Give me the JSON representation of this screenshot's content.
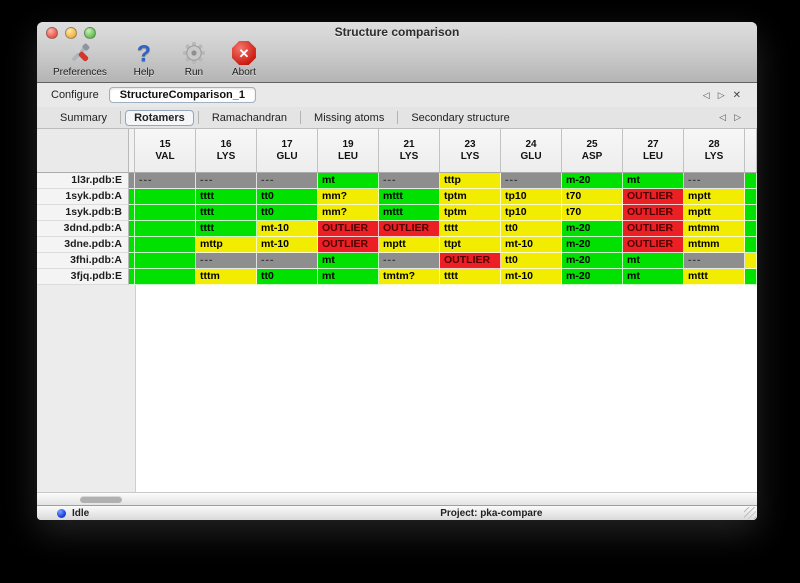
{
  "window": {
    "title": "Structure comparison"
  },
  "toolbar": {
    "items": [
      {
        "id": "preferences",
        "label": "Preferences",
        "icon": "tools-icon"
      },
      {
        "id": "help",
        "label": "Help",
        "icon": "question-mark-icon"
      },
      {
        "id": "run",
        "label": "Run",
        "icon": "gear-icon"
      },
      {
        "id": "abort",
        "label": "Abort",
        "icon": "stop-x-icon"
      }
    ]
  },
  "configure": {
    "label": "Configure",
    "value": "StructureComparison_1"
  },
  "pane_nav": {
    "prev": "◁",
    "next": "▷",
    "close": "✕"
  },
  "tab_nav": {
    "prev": "◁",
    "next": "▷"
  },
  "tabs": [
    {
      "label": "Summary",
      "selected": false
    },
    {
      "label": "Rotamers",
      "selected": true
    },
    {
      "label": "Ramachandran",
      "selected": false
    },
    {
      "label": "Missing atoms",
      "selected": false
    },
    {
      "label": "Secondary structure",
      "selected": false
    }
  ],
  "table": {
    "status_colors": {
      "good": "#00e100",
      "warn": "#f2ed00",
      "bad": "#ec2024",
      "none": "#8e8e8e"
    },
    "columns": [
      {
        "num": "15",
        "res": "VAL"
      },
      {
        "num": "16",
        "res": "LYS"
      },
      {
        "num": "17",
        "res": "GLU"
      },
      {
        "num": "19",
        "res": "LEU"
      },
      {
        "num": "21",
        "res": "LYS"
      },
      {
        "num": "23",
        "res": "LYS"
      },
      {
        "num": "24",
        "res": "GLU"
      },
      {
        "num": "25",
        "res": "ASP"
      },
      {
        "num": "27",
        "res": "LEU"
      },
      {
        "num": "28",
        "res": "LYS"
      }
    ],
    "rows": [
      {
        "label": "1l3r.pdb:E",
        "left_partial": "none",
        "right_partial": "good",
        "cells": [
          [
            "---",
            "none"
          ],
          [
            "---",
            "none"
          ],
          [
            "---",
            "none"
          ],
          [
            "mt",
            "good"
          ],
          [
            "---",
            "none"
          ],
          [
            "tttp",
            "warn"
          ],
          [
            "---",
            "none"
          ],
          [
            "m-20",
            "good"
          ],
          [
            "mt",
            "good"
          ],
          [
            "---",
            "none"
          ]
        ]
      },
      {
        "label": "1syk.pdb:A",
        "left_partial": "good",
        "right_partial": "good",
        "cells": [
          [
            "",
            "good"
          ],
          [
            "tttt",
            "good"
          ],
          [
            "tt0",
            "good"
          ],
          [
            "mm?",
            "warn"
          ],
          [
            "mttt",
            "good"
          ],
          [
            "tptm",
            "warn"
          ],
          [
            "tp10",
            "warn"
          ],
          [
            "t70",
            "warn"
          ],
          [
            "OUTLIER",
            "bad"
          ],
          [
            "mptt",
            "warn"
          ]
        ]
      },
      {
        "label": "1syk.pdb:B",
        "left_partial": "good",
        "right_partial": "good",
        "cells": [
          [
            "",
            "good"
          ],
          [
            "tttt",
            "good"
          ],
          [
            "tt0",
            "good"
          ],
          [
            "mm?",
            "warn"
          ],
          [
            "mttt",
            "good"
          ],
          [
            "tptm",
            "warn"
          ],
          [
            "tp10",
            "warn"
          ],
          [
            "t70",
            "warn"
          ],
          [
            "OUTLIER",
            "bad"
          ],
          [
            "mptt",
            "warn"
          ]
        ]
      },
      {
        "label": "3dnd.pdb:A",
        "left_partial": "good",
        "right_partial": "good",
        "cells": [
          [
            "",
            "good"
          ],
          [
            "tttt",
            "good"
          ],
          [
            "mt-10",
            "warn"
          ],
          [
            "OUTLIER",
            "bad"
          ],
          [
            "OUTLIER",
            "bad"
          ],
          [
            "tttt",
            "warn"
          ],
          [
            "tt0",
            "warn"
          ],
          [
            "m-20",
            "good"
          ],
          [
            "OUTLIER",
            "bad"
          ],
          [
            "mtmm",
            "warn"
          ]
        ]
      },
      {
        "label": "3dne.pdb:A",
        "left_partial": "good",
        "right_partial": "good",
        "cells": [
          [
            "",
            "good"
          ],
          [
            "mttp",
            "warn"
          ],
          [
            "mt-10",
            "warn"
          ],
          [
            "OUTLIER",
            "bad"
          ],
          [
            "mptt",
            "warn"
          ],
          [
            "ttpt",
            "warn"
          ],
          [
            "mt-10",
            "warn"
          ],
          [
            "m-20",
            "good"
          ],
          [
            "OUTLIER",
            "bad"
          ],
          [
            "mtmm",
            "warn"
          ]
        ]
      },
      {
        "label": "3fhi.pdb:A",
        "left_partial": "good",
        "right_partial": "warn",
        "cells": [
          [
            "",
            "good"
          ],
          [
            "---",
            "none"
          ],
          [
            "---",
            "none"
          ],
          [
            "mt",
            "good"
          ],
          [
            "---",
            "none"
          ],
          [
            "OUTLIER",
            "bad"
          ],
          [
            "tt0",
            "warn"
          ],
          [
            "m-20",
            "good"
          ],
          [
            "mt",
            "good"
          ],
          [
            "---",
            "none"
          ]
        ]
      },
      {
        "label": "3fjq.pdb:E",
        "left_partial": "good",
        "right_partial": "good",
        "cells": [
          [
            "",
            "good"
          ],
          [
            "tttm",
            "warn"
          ],
          [
            "tt0",
            "good"
          ],
          [
            "mt",
            "good"
          ],
          [
            "tmtm?",
            "warn"
          ],
          [
            "tttt",
            "warn"
          ],
          [
            "mt-10",
            "warn"
          ],
          [
            "m-20",
            "good"
          ],
          [
            "mt",
            "good"
          ],
          [
            "mttt",
            "warn"
          ]
        ]
      }
    ]
  },
  "status": {
    "state": "Idle",
    "project": "Project: pka-compare"
  }
}
